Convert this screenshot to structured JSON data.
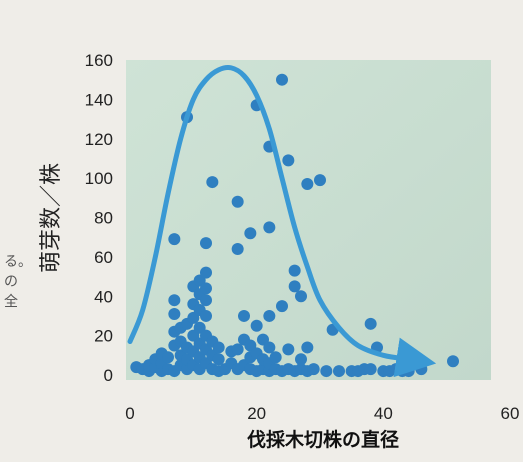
{
  "chart_data": {
    "type": "scatter",
    "title": "",
    "xlabel": "伐採木切株の直径",
    "ylabel": "萌芽数／株",
    "xlim": [
      0,
      60
    ],
    "ylim": [
      0,
      160
    ],
    "x_ticks": [
      "0",
      "20",
      "40",
      "60"
    ],
    "y_ticks": [
      "0",
      "20",
      "40",
      "60",
      "80",
      "100",
      "120",
      "140",
      "160"
    ],
    "grid": false,
    "colors": {
      "plot_background": "#c8ddd0",
      "points": "#2f7fc0",
      "trend_curve": "#3a99d4"
    },
    "series": [
      {
        "points": [
          [
            1,
            4
          ],
          [
            2,
            3
          ],
          [
            3,
            2
          ],
          [
            3,
            5
          ],
          [
            4,
            4
          ],
          [
            4,
            8
          ],
          [
            5,
            2
          ],
          [
            5,
            6
          ],
          [
            5,
            11
          ],
          [
            6,
            3
          ],
          [
            6,
            9
          ],
          [
            7,
            2
          ],
          [
            7,
            15
          ],
          [
            7,
            22
          ],
          [
            7,
            31
          ],
          [
            7,
            38
          ],
          [
            7,
            69
          ],
          [
            8,
            5
          ],
          [
            8,
            10
          ],
          [
            8,
            17
          ],
          [
            8,
            24
          ],
          [
            9,
            3
          ],
          [
            9,
            8
          ],
          [
            9,
            14
          ],
          [
            9,
            26
          ],
          [
            9,
            131
          ],
          [
            10,
            5
          ],
          [
            10,
            12
          ],
          [
            10,
            20
          ],
          [
            10,
            29
          ],
          [
            10,
            36
          ],
          [
            10,
            45
          ],
          [
            11,
            3
          ],
          [
            11,
            9
          ],
          [
            11,
            16
          ],
          [
            11,
            24
          ],
          [
            11,
            33
          ],
          [
            11,
            41
          ],
          [
            11,
            48
          ],
          [
            12,
            6
          ],
          [
            12,
            13
          ],
          [
            12,
            20
          ],
          [
            12,
            30
          ],
          [
            12,
            38
          ],
          [
            12,
            44
          ],
          [
            12,
            52
          ],
          [
            12,
            67
          ],
          [
            13,
            3
          ],
          [
            13,
            10
          ],
          [
            13,
            17
          ],
          [
            13,
            98
          ],
          [
            14,
            2
          ],
          [
            14,
            8
          ],
          [
            14,
            14
          ],
          [
            15,
            3
          ],
          [
            16,
            6
          ],
          [
            16,
            12
          ],
          [
            17,
            3
          ],
          [
            17,
            13
          ],
          [
            17,
            64
          ],
          [
            17,
            88
          ],
          [
            18,
            5
          ],
          [
            18,
            18
          ],
          [
            18,
            30
          ],
          [
            19,
            3
          ],
          [
            19,
            9
          ],
          [
            19,
            15
          ],
          [
            19,
            72
          ],
          [
            20,
            2
          ],
          [
            20,
            11
          ],
          [
            20,
            25
          ],
          [
            20,
            137
          ],
          [
            21,
            3
          ],
          [
            21,
            8
          ],
          [
            21,
            18
          ],
          [
            22,
            2
          ],
          [
            22,
            6
          ],
          [
            22,
            14
          ],
          [
            22,
            30
          ],
          [
            22,
            75
          ],
          [
            22,
            116
          ],
          [
            23,
            3
          ],
          [
            23,
            9
          ],
          [
            24,
            2
          ],
          [
            24,
            35
          ],
          [
            24,
            150
          ],
          [
            25,
            3
          ],
          [
            25,
            13
          ],
          [
            25,
            109
          ],
          [
            26,
            2
          ],
          [
            26,
            45
          ],
          [
            26,
            53
          ],
          [
            27,
            3
          ],
          [
            27,
            8
          ],
          [
            27,
            40
          ],
          [
            28,
            2
          ],
          [
            28,
            14
          ],
          [
            28,
            97
          ],
          [
            29,
            3
          ],
          [
            30,
            99
          ],
          [
            31,
            2
          ],
          [
            32,
            23
          ],
          [
            33,
            2
          ],
          [
            35,
            2
          ],
          [
            36,
            2
          ],
          [
            37,
            3
          ],
          [
            38,
            3
          ],
          [
            38,
            26
          ],
          [
            39,
            14
          ],
          [
            40,
            2
          ],
          [
            41,
            2
          ],
          [
            42,
            3
          ],
          [
            43,
            2
          ],
          [
            43,
            5
          ],
          [
            44,
            2
          ],
          [
            44,
            9
          ],
          [
            46,
            3
          ],
          [
            51,
            7
          ]
        ]
      }
    ],
    "trend_curve": [
      [
        0,
        17
      ],
      [
        2,
        33
      ],
      [
        4,
        60
      ],
      [
        6,
        92
      ],
      [
        8,
        120
      ],
      [
        10,
        140
      ],
      [
        12,
        150
      ],
      [
        14,
        155
      ],
      [
        16,
        156
      ],
      [
        18,
        152
      ],
      [
        20,
        142
      ],
      [
        22,
        125
      ],
      [
        24,
        100
      ],
      [
        26,
        75
      ],
      [
        28,
        55
      ],
      [
        30,
        38
      ],
      [
        33,
        24
      ],
      [
        36,
        15
      ],
      [
        40,
        10
      ],
      [
        44,
        8
      ],
      [
        46,
        7
      ]
    ]
  },
  "page_margin_text": [
    "る。",
    "の",
    "全"
  ]
}
